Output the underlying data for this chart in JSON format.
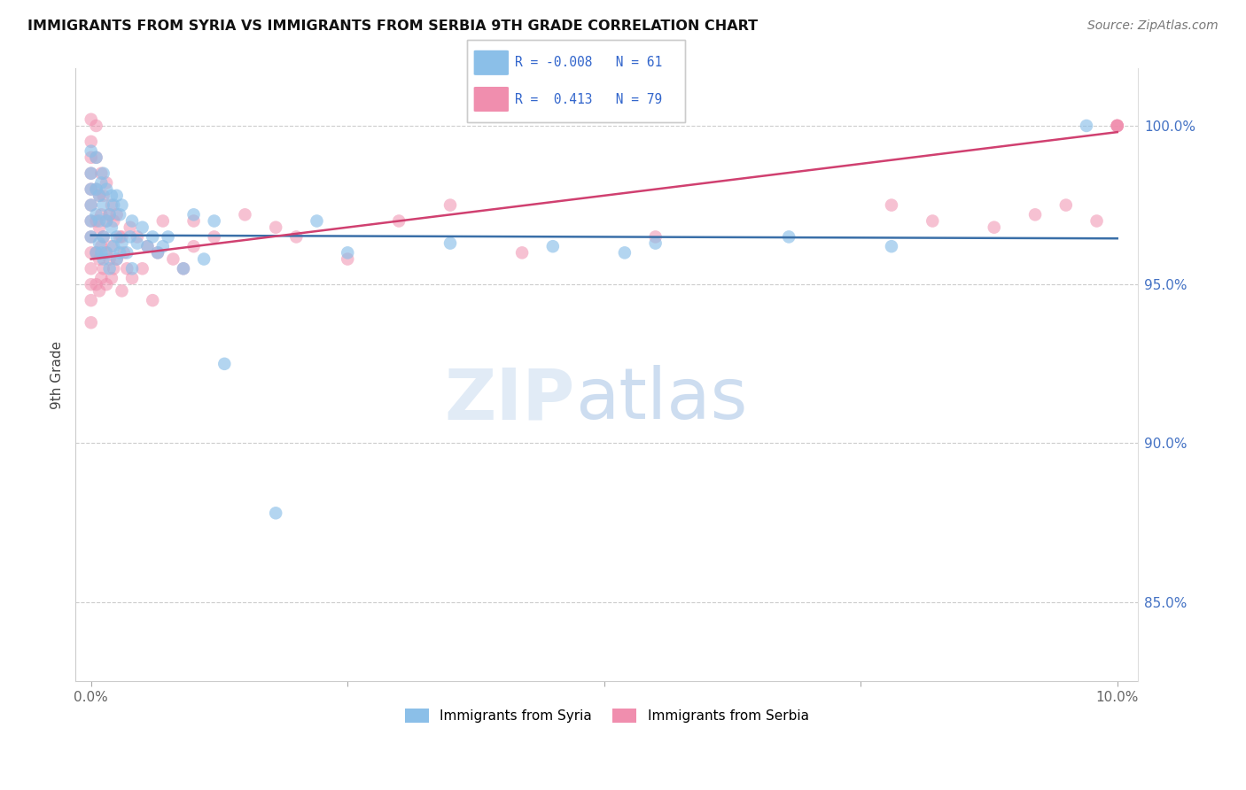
{
  "title": "IMMIGRANTS FROM SYRIA VS IMMIGRANTS FROM SERBIA 9TH GRADE CORRELATION CHART",
  "source": "Source: ZipAtlas.com",
  "ylabel": "9th Grade",
  "xlim": [
    0.0,
    10.0
  ],
  "ylim": [
    82.5,
    101.8
  ],
  "legend_syria_R": "-0.008",
  "legend_syria_N": "61",
  "legend_serbia_R": "0.413",
  "legend_serbia_N": "79",
  "syria_color": "#8BBFE8",
  "serbia_color": "#F08EAE",
  "trendline_syria_color": "#3A6FA8",
  "trendline_serbia_color": "#D04070",
  "syria_trendline": [
    96.55,
    96.45
  ],
  "serbia_trendline": [
    95.8,
    99.8
  ],
  "syria_x": [
    0.0,
    0.0,
    0.0,
    0.0,
    0.0,
    0.0,
    0.05,
    0.05,
    0.05,
    0.05,
    0.08,
    0.08,
    0.08,
    0.1,
    0.1,
    0.12,
    0.12,
    0.12,
    0.12,
    0.15,
    0.15,
    0.15,
    0.18,
    0.18,
    0.2,
    0.2,
    0.22,
    0.22,
    0.25,
    0.25,
    0.25,
    0.28,
    0.28,
    0.3,
    0.3,
    0.35,
    0.38,
    0.4,
    0.4,
    0.45,
    0.5,
    0.55,
    0.6,
    0.65,
    0.7,
    0.75,
    0.9,
    1.0,
    1.1,
    1.2,
    1.3,
    1.8,
    2.2,
    2.5,
    3.5,
    4.5,
    5.2,
    5.5,
    6.8,
    7.8,
    9.7
  ],
  "syria_y": [
    96.5,
    97.0,
    97.5,
    98.0,
    98.5,
    99.2,
    96.0,
    97.2,
    98.0,
    99.0,
    96.3,
    97.0,
    97.8,
    96.0,
    98.2,
    95.8,
    96.5,
    97.5,
    98.5,
    96.0,
    97.0,
    98.0,
    95.5,
    97.2,
    96.8,
    97.8,
    96.2,
    97.5,
    95.8,
    96.5,
    97.8,
    96.0,
    97.2,
    96.3,
    97.5,
    96.0,
    96.5,
    95.5,
    97.0,
    96.3,
    96.8,
    96.2,
    96.5,
    96.0,
    96.2,
    96.5,
    95.5,
    97.2,
    95.8,
    97.0,
    92.5,
    87.8,
    97.0,
    96.0,
    96.3,
    96.2,
    96.0,
    96.3,
    96.5,
    96.2,
    100.0
  ],
  "serbia_x": [
    0.0,
    0.0,
    0.0,
    0.0,
    0.0,
    0.0,
    0.0,
    0.0,
    0.0,
    0.0,
    0.0,
    0.0,
    0.0,
    0.05,
    0.05,
    0.05,
    0.05,
    0.05,
    0.05,
    0.08,
    0.08,
    0.08,
    0.08,
    0.1,
    0.1,
    0.1,
    0.1,
    0.12,
    0.12,
    0.12,
    0.15,
    0.15,
    0.15,
    0.15,
    0.18,
    0.18,
    0.2,
    0.2,
    0.2,
    0.22,
    0.22,
    0.25,
    0.25,
    0.28,
    0.3,
    0.3,
    0.32,
    0.35,
    0.38,
    0.4,
    0.45,
    0.5,
    0.55,
    0.6,
    0.65,
    0.7,
    0.8,
    0.9,
    1.0,
    1.0,
    1.2,
    1.5,
    1.8,
    2.0,
    2.5,
    3.0,
    3.5,
    4.2,
    5.5,
    7.8,
    8.2,
    8.8,
    9.2,
    9.5,
    9.8,
    10.0,
    10.0,
    10.0,
    10.0
  ],
  "serbia_y": [
    93.8,
    94.5,
    95.0,
    95.5,
    96.0,
    96.5,
    97.0,
    97.5,
    98.0,
    98.5,
    99.0,
    99.5,
    100.2,
    95.0,
    96.0,
    97.0,
    98.0,
    99.0,
    100.0,
    94.8,
    95.8,
    96.8,
    97.8,
    95.2,
    96.2,
    97.2,
    98.5,
    95.5,
    96.5,
    97.8,
    95.0,
    96.0,
    97.0,
    98.2,
    95.8,
    97.2,
    95.2,
    96.2,
    97.5,
    95.5,
    97.0,
    95.8,
    97.2,
    96.5,
    94.8,
    96.5,
    96.0,
    95.5,
    96.8,
    95.2,
    96.5,
    95.5,
    96.2,
    94.5,
    96.0,
    97.0,
    95.8,
    95.5,
    96.2,
    97.0,
    96.5,
    97.2,
    96.8,
    96.5,
    95.8,
    97.0,
    97.5,
    96.0,
    96.5,
    97.5,
    97.0,
    96.8,
    97.2,
    97.5,
    97.0,
    100.0,
    100.0,
    100.0,
    100.0
  ]
}
